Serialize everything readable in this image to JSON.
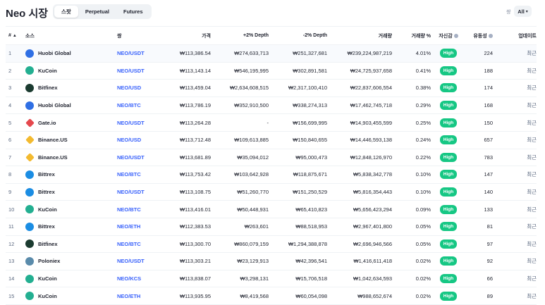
{
  "header": {
    "title": "Neo 시장",
    "tabs": [
      "스팟",
      "Perpetual",
      "Futures"
    ],
    "active_tab": 0,
    "pair_filter_label": "쌍",
    "pair_filter_value": "All"
  },
  "table": {
    "columns": {
      "rank": "#",
      "source": "소스",
      "pair": "쌍",
      "price": "가격",
      "depth_plus": "+2% Depth",
      "depth_minus": "-2% Depth",
      "volume": "거래량",
      "volume_pct": "거래량 %",
      "confidence": "자신감",
      "liquidity": "유동성",
      "updated": "업데이트"
    },
    "rows": [
      {
        "rank": "1",
        "source": "Huobi Global",
        "logo": "huobi-logo",
        "pair": "NEO/USDT",
        "price": "₩113,386.54",
        "depth_plus": "₩274,633,713",
        "depth_minus": "₩251,327,681",
        "volume": "₩239,224,987,219",
        "volume_pct": "4.01%",
        "confidence": "High",
        "liquidity": "224",
        "updated": "최근"
      },
      {
        "rank": "2",
        "source": "KuCoin",
        "logo": "kucoin-logo",
        "pair": "NEO/USDT",
        "price": "₩113,143.14",
        "depth_plus": "₩546,195,995",
        "depth_minus": "₩302,891,581",
        "volume": "₩24,725,937,658",
        "volume_pct": "0.41%",
        "confidence": "High",
        "liquidity": "188",
        "updated": "최근"
      },
      {
        "rank": "3",
        "source": "Bitfinex",
        "logo": "bitfinex-logo",
        "pair": "NEO/USD",
        "price": "₩113,459.04",
        "depth_plus": "₩2,634,608,515",
        "depth_minus": "₩2,317,100,410",
        "volume": "₩22,837,606,554",
        "volume_pct": "0.38%",
        "confidence": "High",
        "liquidity": "174",
        "updated": "최근"
      },
      {
        "rank": "4",
        "source": "Huobi Global",
        "logo": "huobi-logo",
        "pair": "NEO/BTC",
        "price": "₩113,786.19",
        "depth_plus": "₩352,910,500",
        "depth_minus": "₩338,274,313",
        "volume": "₩17,462,745,718",
        "volume_pct": "0.29%",
        "confidence": "High",
        "liquidity": "168",
        "updated": "최근"
      },
      {
        "rank": "5",
        "source": "Gate.io",
        "logo": "gateio-logo",
        "pair": "NEO/USDT",
        "price": "₩113,264.28",
        "depth_plus": "-",
        "depth_minus": "₩156,699,995",
        "volume": "₩14,903,455,599",
        "volume_pct": "0.25%",
        "confidence": "High",
        "liquidity": "150",
        "updated": "최근"
      },
      {
        "rank": "6",
        "source": "Binance.US",
        "logo": "binance-logo",
        "pair": "NEO/USD",
        "price": "₩113,712.48",
        "depth_plus": "₩109,613,885",
        "depth_minus": "₩150,840,655",
        "volume": "₩14,446,593,138",
        "volume_pct": "0.24%",
        "confidence": "High",
        "liquidity": "657",
        "updated": "최근"
      },
      {
        "rank": "7",
        "source": "Binance.US",
        "logo": "binance-logo",
        "pair": "NEO/USDT",
        "price": "₩113,681.89",
        "depth_plus": "₩35,094,012",
        "depth_minus": "₩95,000,473",
        "volume": "₩12,848,126,970",
        "volume_pct": "0.22%",
        "confidence": "High",
        "liquidity": "783",
        "updated": "최근"
      },
      {
        "rank": "8",
        "source": "Bittrex",
        "logo": "bittrex-logo",
        "pair": "NEO/BTC",
        "price": "₩113,753.42",
        "depth_plus": "₩103,642,928",
        "depth_minus": "₩118,875,671",
        "volume": "₩5,838,342,778",
        "volume_pct": "0.10%",
        "confidence": "High",
        "liquidity": "147",
        "updated": "최근"
      },
      {
        "rank": "9",
        "source": "Bittrex",
        "logo": "bittrex-logo",
        "pair": "NEO/USDT",
        "price": "₩113,108.75",
        "depth_plus": "₩51,260,770",
        "depth_minus": "₩151,250,529",
        "volume": "₩5,816,354,443",
        "volume_pct": "0.10%",
        "confidence": "High",
        "liquidity": "140",
        "updated": "최근"
      },
      {
        "rank": "10",
        "source": "KuCoin",
        "logo": "kucoin-logo",
        "pair": "NEO/BTC",
        "price": "₩113,416.01",
        "depth_plus": "₩50,448,931",
        "depth_minus": "₩65,410,823",
        "volume": "₩5,656,423,294",
        "volume_pct": "0.09%",
        "confidence": "High",
        "liquidity": "133",
        "updated": "최근"
      },
      {
        "rank": "11",
        "source": "Bittrex",
        "logo": "bittrex-logo",
        "pair": "NEO/ETH",
        "price": "₩112,383.53",
        "depth_plus": "₩263,601",
        "depth_minus": "₩88,518,953",
        "volume": "₩2,967,401,800",
        "volume_pct": "0.05%",
        "confidence": "High",
        "liquidity": "81",
        "updated": "최근"
      },
      {
        "rank": "12",
        "source": "Bitfinex",
        "logo": "bitfinex-logo",
        "pair": "NEO/BTC",
        "price": "₩113,300.70",
        "depth_plus": "₩860,079,159",
        "depth_minus": "₩1,294,388,878",
        "volume": "₩2,696,946,566",
        "volume_pct": "0.05%",
        "confidence": "High",
        "liquidity": "97",
        "updated": "최근"
      },
      {
        "rank": "13",
        "source": "Poloniex",
        "logo": "poloniex-logo",
        "pair": "NEO/USDT",
        "price": "₩113,303.21",
        "depth_plus": "₩23,129,913",
        "depth_minus": "₩42,396,541",
        "volume": "₩1,416,611,418",
        "volume_pct": "0.02%",
        "confidence": "High",
        "liquidity": "92",
        "updated": "최근"
      },
      {
        "rank": "14",
        "source": "KuCoin",
        "logo": "kucoin-logo",
        "pair": "NEO/KCS",
        "price": "₩113,838.07",
        "depth_plus": "₩3,298,131",
        "depth_minus": "₩15,706,518",
        "volume": "₩1,042,634,593",
        "volume_pct": "0.02%",
        "confidence": "High",
        "liquidity": "66",
        "updated": "최근"
      },
      {
        "rank": "15",
        "source": "KuCoin",
        "logo": "kucoin-logo",
        "pair": "NEO/ETH",
        "price": "₩113,935.95",
        "depth_plus": "₩8,419,568",
        "depth_minus": "₩60,054,098",
        "volume": "₩988,652,674",
        "volume_pct": "0.02%",
        "confidence": "High",
        "liquidity": "89",
        "updated": "최근"
      }
    ]
  },
  "colors": {
    "accent_link": "#3861fb",
    "high_badge": "#16c784",
    "huobi-logo": "#2f6fe4",
    "kucoin-logo": "#23af91",
    "bitfinex-logo": "#1b3b30",
    "gateio-logo": "#e5484d",
    "binance-logo": "#f3ba2f",
    "bittrex-logo": "#1b8de3",
    "poloniex-logo": "#5a8bab"
  }
}
